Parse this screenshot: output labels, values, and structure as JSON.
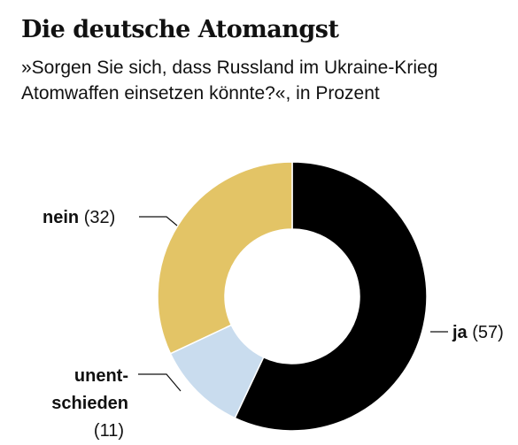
{
  "title": "Die deutsche Atomangst",
  "subtitle": "»Sorgen Sie sich, dass Russland im Ukraine-Krieg Atomwaffen einsetzen könnte?«, in Prozent",
  "chart_data": {
    "type": "pie",
    "variant": "donut",
    "slices": [
      {
        "label": "ja",
        "value": 57,
        "color": "#000000"
      },
      {
        "label": "unentschieden",
        "value": 11,
        "color": "#c9dcee"
      },
      {
        "label": "nein",
        "value": 32,
        "color": "#e3c466"
      }
    ],
    "labels": {
      "ja": {
        "name": "ja",
        "value_text": "(57)"
      },
      "unentschieden": {
        "name_line1": "unent-",
        "name_line2": "schieden",
        "value_text": "(11)"
      },
      "nein": {
        "name": "nein",
        "value_text": "(32)"
      }
    }
  }
}
